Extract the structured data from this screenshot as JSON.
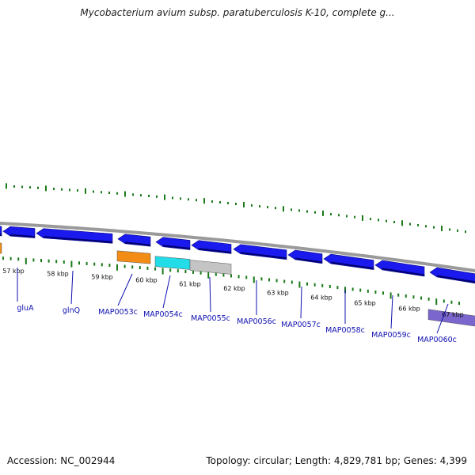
{
  "title": "Mycobacterium avium subsp. paratuberculosis K-10, complete g...",
  "footer": {
    "accession": "Accession: NC_002944",
    "summary": "Topology: circular; Length: 4,829,781 bp; Genes: 4,399"
  },
  "kbp_labels": [
    "57 kbp",
    "58 kbp",
    "59 kbp",
    "60 kbp",
    "61 kbp",
    "62 kbp",
    "63 kbp",
    "64 kbp",
    "65 kbp",
    "66 kbp",
    "67 kbp"
  ],
  "gene_labels": [
    "gluA",
    "glnQ",
    "MAP0053c",
    "MAP0054c",
    "MAP0055c",
    "MAP0056c",
    "MAP0057c",
    "MAP0058c",
    "MAP0059c",
    "MAP0060c"
  ],
  "colors": {
    "forward_gene": "#1a1aee",
    "orange_feature": "#f28c14",
    "cyan_feature": "#22dde8",
    "gray_feature": "#c4c4c4",
    "purple_feature": "#7a66cc",
    "backbone": "#9a9a9a",
    "tick": "#1a7a1a",
    "label": "#1010b0"
  }
}
